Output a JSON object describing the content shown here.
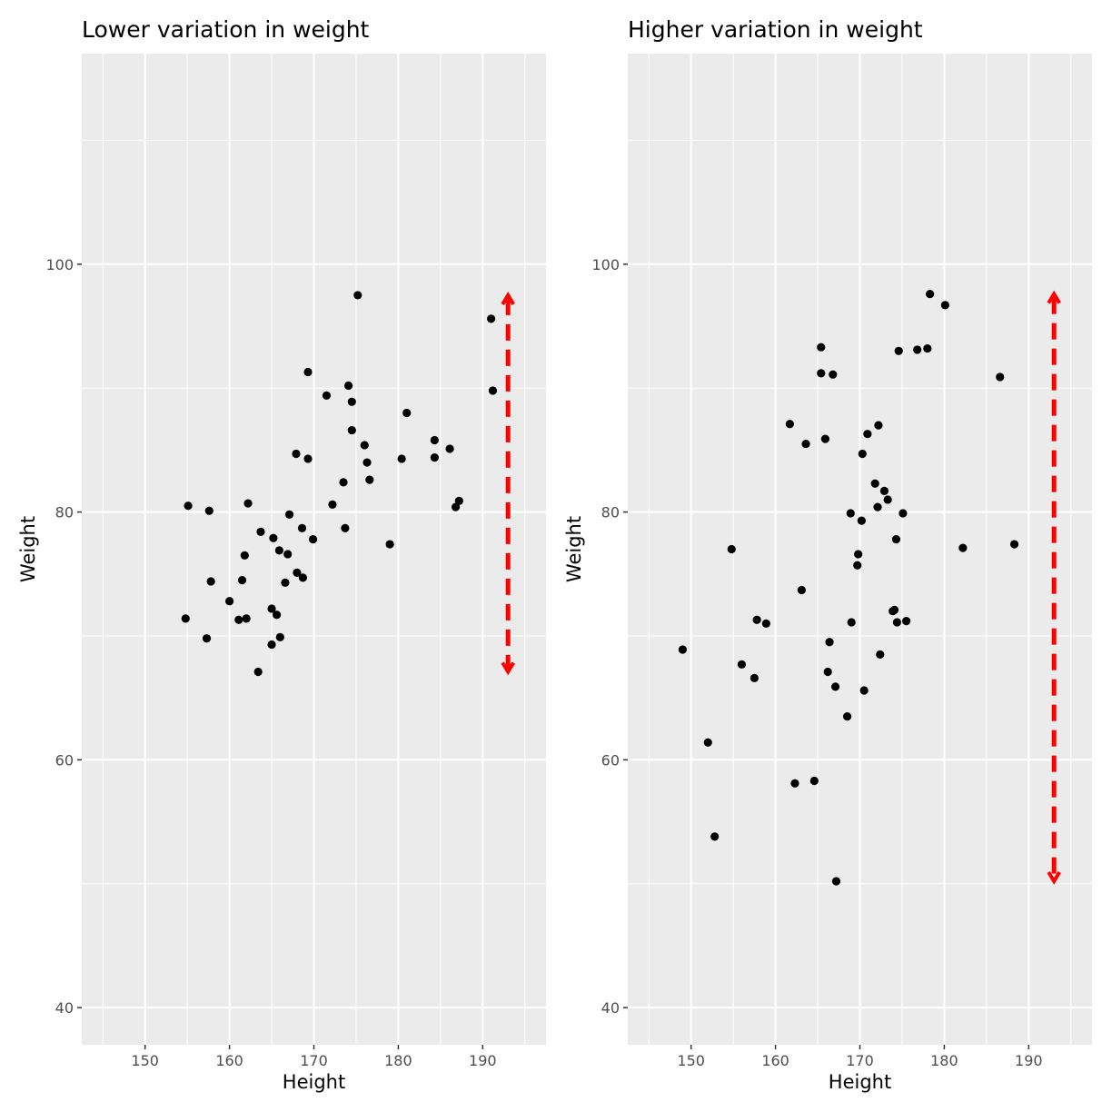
{
  "chart_data": [
    {
      "type": "scatter",
      "title": "Lower variation in weight",
      "xlabel": "Height",
      "ylabel": "Weight",
      "xlim": [
        142.5,
        197.5
      ],
      "ylim": [
        37,
        117
      ],
      "x_ticks": [
        150,
        160,
        170,
        180,
        190
      ],
      "y_ticks": [
        40,
        60,
        80,
        100
      ],
      "grid": true,
      "background": "#ebebeb",
      "point_color": "#000000",
      "points": [
        {
          "x": 175.2,
          "y": 97.5
        },
        {
          "x": 191.0,
          "y": 95.6
        },
        {
          "x": 169.3,
          "y": 91.3
        },
        {
          "x": 174.1,
          "y": 90.2
        },
        {
          "x": 191.2,
          "y": 89.8
        },
        {
          "x": 171.5,
          "y": 89.4
        },
        {
          "x": 174.5,
          "y": 88.9
        },
        {
          "x": 181.0,
          "y": 88.0
        },
        {
          "x": 174.5,
          "y": 86.6
        },
        {
          "x": 184.3,
          "y": 85.8
        },
        {
          "x": 176.0,
          "y": 85.4
        },
        {
          "x": 186.1,
          "y": 85.1
        },
        {
          "x": 167.9,
          "y": 84.7
        },
        {
          "x": 169.3,
          "y": 84.3
        },
        {
          "x": 180.4,
          "y": 84.3
        },
        {
          "x": 184.3,
          "y": 84.4
        },
        {
          "x": 176.3,
          "y": 84.0
        },
        {
          "x": 176.6,
          "y": 82.6
        },
        {
          "x": 173.5,
          "y": 82.4
        },
        {
          "x": 187.2,
          "y": 80.9
        },
        {
          "x": 155.1,
          "y": 80.5
        },
        {
          "x": 162.2,
          "y": 80.7
        },
        {
          "x": 172.2,
          "y": 80.6
        },
        {
          "x": 186.8,
          "y": 80.4
        },
        {
          "x": 157.6,
          "y": 80.1
        },
        {
          "x": 167.1,
          "y": 79.8
        },
        {
          "x": 168.6,
          "y": 78.7
        },
        {
          "x": 173.7,
          "y": 78.7
        },
        {
          "x": 163.7,
          "y": 78.4
        },
        {
          "x": 165.2,
          "y": 77.9
        },
        {
          "x": 169.9,
          "y": 77.8
        },
        {
          "x": 179.0,
          "y": 77.4
        },
        {
          "x": 165.9,
          "y": 76.9
        },
        {
          "x": 161.8,
          "y": 76.5
        },
        {
          "x": 166.9,
          "y": 76.6
        },
        {
          "x": 168.0,
          "y": 75.1
        },
        {
          "x": 168.7,
          "y": 74.7
        },
        {
          "x": 161.5,
          "y": 74.5
        },
        {
          "x": 157.8,
          "y": 74.4
        },
        {
          "x": 166.6,
          "y": 74.3
        },
        {
          "x": 160.0,
          "y": 72.8
        },
        {
          "x": 165.0,
          "y": 72.2
        },
        {
          "x": 165.6,
          "y": 71.7
        },
        {
          "x": 154.8,
          "y": 71.4
        },
        {
          "x": 161.1,
          "y": 71.3
        },
        {
          "x": 162.0,
          "y": 71.4
        },
        {
          "x": 157.3,
          "y": 69.8
        },
        {
          "x": 166.0,
          "y": 69.9
        },
        {
          "x": 165.0,
          "y": 69.3
        },
        {
          "x": 163.4,
          "y": 67.1
        }
      ],
      "range_arrow": {
        "x": 193.0,
        "y_from": 97.5,
        "y_to": 67.1,
        "color": "#ff0000",
        "style": "dashed",
        "heads": "both"
      }
    },
    {
      "type": "scatter",
      "title": "Higher variation in weight",
      "xlabel": "Height",
      "ylabel": "Weight",
      "xlim": [
        142.5,
        197.5
      ],
      "ylim": [
        37,
        117
      ],
      "x_ticks": [
        150,
        160,
        170,
        180,
        190
      ],
      "y_ticks": [
        40,
        60,
        80,
        100
      ],
      "grid": true,
      "background": "#ebebeb",
      "point_color": "#000000",
      "points": [
        {
          "x": 178.3,
          "y": 97.6
        },
        {
          "x": 180.1,
          "y": 96.7
        },
        {
          "x": 165.4,
          "y": 93.3
        },
        {
          "x": 178.0,
          "y": 93.2
        },
        {
          "x": 176.8,
          "y": 93.1
        },
        {
          "x": 174.6,
          "y": 93.0
        },
        {
          "x": 165.4,
          "y": 91.2
        },
        {
          "x": 166.8,
          "y": 91.1
        },
        {
          "x": 186.6,
          "y": 90.9
        },
        {
          "x": 161.7,
          "y": 87.1
        },
        {
          "x": 172.2,
          "y": 87.0
        },
        {
          "x": 170.9,
          "y": 86.3
        },
        {
          "x": 165.9,
          "y": 85.9
        },
        {
          "x": 163.6,
          "y": 85.5
        },
        {
          "x": 170.3,
          "y": 84.7
        },
        {
          "x": 171.8,
          "y": 82.3
        },
        {
          "x": 172.9,
          "y": 81.7
        },
        {
          "x": 173.3,
          "y": 81.0
        },
        {
          "x": 172.1,
          "y": 80.4
        },
        {
          "x": 168.9,
          "y": 79.9
        },
        {
          "x": 175.1,
          "y": 79.9
        },
        {
          "x": 170.2,
          "y": 79.3
        },
        {
          "x": 174.3,
          "y": 77.8
        },
        {
          "x": 154.8,
          "y": 77.0
        },
        {
          "x": 182.2,
          "y": 77.1
        },
        {
          "x": 188.3,
          "y": 77.4
        },
        {
          "x": 169.8,
          "y": 76.6
        },
        {
          "x": 169.7,
          "y": 75.7
        },
        {
          "x": 163.1,
          "y": 73.7
        },
        {
          "x": 173.9,
          "y": 72.0
        },
        {
          "x": 174.1,
          "y": 72.1
        },
        {
          "x": 157.8,
          "y": 71.3
        },
        {
          "x": 158.9,
          "y": 71.0
        },
        {
          "x": 169.0,
          "y": 71.1
        },
        {
          "x": 174.4,
          "y": 71.1
        },
        {
          "x": 175.5,
          "y": 71.2
        },
        {
          "x": 149.0,
          "y": 68.9
        },
        {
          "x": 166.4,
          "y": 69.5
        },
        {
          "x": 172.4,
          "y": 68.5
        },
        {
          "x": 156.0,
          "y": 67.7
        },
        {
          "x": 166.2,
          "y": 67.1
        },
        {
          "x": 157.5,
          "y": 66.6
        },
        {
          "x": 167.1,
          "y": 65.9
        },
        {
          "x": 170.5,
          "y": 65.6
        },
        {
          "x": 168.5,
          "y": 63.5
        },
        {
          "x": 152.0,
          "y": 61.4
        },
        {
          "x": 164.6,
          "y": 58.3
        },
        {
          "x": 162.3,
          "y": 58.1
        },
        {
          "x": 152.8,
          "y": 53.8
        },
        {
          "x": 167.2,
          "y": 50.2
        }
      ],
      "range_arrow": {
        "x": 193.0,
        "y_from": 97.6,
        "y_to": 50.2,
        "color": "#ff0000",
        "style": "dashed",
        "heads": "both"
      }
    }
  ]
}
